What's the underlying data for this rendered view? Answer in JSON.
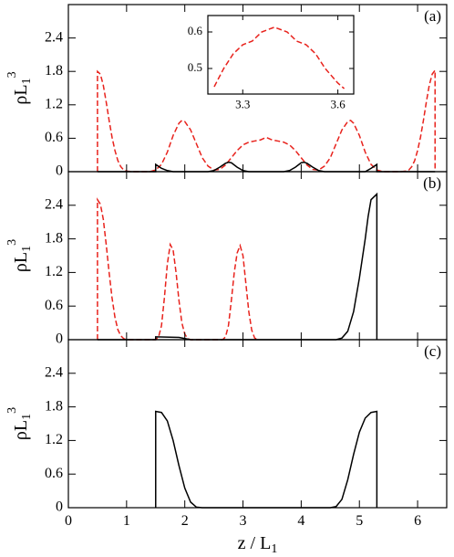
{
  "chart_data": [
    {
      "type": "line",
      "label": "(a)",
      "ylabel": {
        "text": "ρL",
        "sub": "1",
        "sup": "3"
      },
      "xlim": [
        0,
        6.5
      ],
      "ylim": [
        0,
        3.0
      ],
      "yticks": [
        0,
        0.6,
        1.2,
        1.8,
        2.4
      ],
      "series": [
        {
          "color": "#e8221c",
          "dash": true,
          "x": [
            0.5,
            0.5,
            0.55,
            0.6,
            0.65,
            0.7,
            0.75,
            0.8,
            0.85,
            0.9,
            0.95,
            1.0,
            1.1,
            1.4,
            1.5,
            1.6,
            1.7,
            1.8,
            1.9,
            1.95,
            2.0,
            2.1,
            2.2,
            2.3,
            2.4,
            2.5,
            2.6,
            2.7,
            2.8,
            2.9,
            3.0,
            3.1,
            3.2,
            3.3,
            3.4,
            3.5,
            3.6,
            3.7,
            3.8,
            3.9,
            4.0,
            4.1,
            4.2,
            4.3,
            4.4,
            4.5,
            4.6,
            4.7,
            4.8,
            4.85,
            4.9,
            5.0,
            5.1,
            5.2,
            5.3,
            5.4,
            5.7,
            5.8,
            5.85,
            5.9,
            5.95,
            6.0,
            6.05,
            6.1,
            6.15,
            6.2,
            6.25,
            6.3,
            6.3
          ],
          "values": [
            0,
            1.8,
            1.75,
            1.55,
            1.25,
            0.92,
            0.62,
            0.38,
            0.2,
            0.09,
            0.03,
            0.01,
            0,
            0,
            0.03,
            0.13,
            0.35,
            0.65,
            0.87,
            0.92,
            0.9,
            0.75,
            0.5,
            0.25,
            0.1,
            0.03,
            0.04,
            0.12,
            0.25,
            0.38,
            0.48,
            0.53,
            0.55,
            0.57,
            0.615,
            0.57,
            0.55,
            0.53,
            0.48,
            0.38,
            0.25,
            0.12,
            0.04,
            0.03,
            0.1,
            0.25,
            0.5,
            0.75,
            0.9,
            0.92,
            0.87,
            0.65,
            0.35,
            0.13,
            0.03,
            0,
            0,
            0.01,
            0.03,
            0.09,
            0.2,
            0.38,
            0.62,
            0.92,
            1.25,
            1.55,
            1.75,
            1.82,
            0
          ]
        },
        {
          "color": "#000000",
          "dash": false,
          "x": [
            0.5,
            1.5,
            1.5,
            1.6,
            1.7,
            1.8,
            2.4,
            2.5,
            2.6,
            2.7,
            2.75,
            2.8,
            2.9,
            3.0,
            3.1,
            3.7,
            3.8,
            3.9,
            4.0,
            4.05,
            4.1,
            4.2,
            4.3,
            4.4,
            5.1,
            5.2,
            5.3,
            5.3,
            6.3
          ],
          "values": [
            0,
            0,
            0.13,
            0.06,
            0.02,
            0,
            0,
            0.02,
            0.08,
            0.15,
            0.17,
            0.16,
            0.08,
            0.02,
            0,
            0,
            0.02,
            0.08,
            0.16,
            0.17,
            0.15,
            0.08,
            0.02,
            0,
            0,
            0.06,
            0.13,
            0,
            0
          ]
        }
      ]
    },
    {
      "type": "line",
      "label": "(b)",
      "ylabel": {
        "text": "ρL",
        "sub": "1",
        "sup": "3"
      },
      "xlim": [
        0,
        6.5
      ],
      "ylim": [
        0,
        3.0
      ],
      "yticks": [
        0,
        0.6,
        1.2,
        1.8,
        2.4
      ],
      "series": [
        {
          "color": "#e8221c",
          "dash": true,
          "x": [
            0.5,
            0.5,
            0.55,
            0.6,
            0.65,
            0.7,
            0.75,
            0.8,
            0.85,
            0.9,
            0.95,
            1.0,
            1.5,
            1.55,
            1.6,
            1.65,
            1.7,
            1.75,
            1.8,
            1.85,
            1.9,
            1.95,
            2.0,
            2.05,
            2.1,
            2.65,
            2.7,
            2.75,
            2.8,
            2.85,
            2.9,
            2.95,
            3.0,
            3.05,
            3.1,
            3.15,
            3.2,
            3.25
          ],
          "values": [
            0,
            2.5,
            2.42,
            2.15,
            1.7,
            1.2,
            0.75,
            0.4,
            0.18,
            0.07,
            0.02,
            0,
            0,
            0.05,
            0.25,
            0.75,
            1.35,
            1.7,
            1.6,
            1.2,
            0.7,
            0.3,
            0.1,
            0.02,
            0,
            0,
            0.05,
            0.25,
            0.7,
            1.2,
            1.55,
            1.68,
            1.5,
            1.0,
            0.5,
            0.17,
            0.03,
            0
          ]
        },
        {
          "color": "#000000",
          "dash": false,
          "x": [
            0.5,
            1.5,
            1.5,
            1.9,
            2.0,
            2.1,
            4.6,
            4.7,
            4.8,
            4.9,
            5.0,
            5.1,
            5.15,
            5.2,
            5.3,
            5.3
          ],
          "values": [
            0,
            0,
            0.05,
            0.04,
            0.02,
            0,
            0,
            0.03,
            0.15,
            0.5,
            1.1,
            1.8,
            2.2,
            2.5,
            2.6,
            0
          ]
        }
      ]
    },
    {
      "type": "line",
      "label": "(c)",
      "ylabel": {
        "text": "ρL",
        "sub": "1",
        "sup": "3"
      },
      "xlabel": {
        "text": "z / L",
        "sub": "1"
      },
      "xlim": [
        0,
        6.5
      ],
      "ylim": [
        0,
        3.0
      ],
      "yticks": [
        0,
        0.6,
        1.2,
        1.8,
        2.4
      ],
      "xticks": [
        0,
        1,
        2,
        3,
        4,
        5,
        6
      ],
      "series": [
        {
          "color": "#000000",
          "dash": false,
          "x": [
            1.5,
            1.5,
            1.6,
            1.7,
            1.8,
            1.9,
            2.0,
            2.1,
            2.2,
            2.3,
            4.5,
            4.6,
            4.7,
            4.8,
            4.9,
            5.0,
            5.1,
            5.2,
            5.3,
            5.3
          ],
          "values": [
            0,
            1.72,
            1.7,
            1.55,
            1.2,
            0.75,
            0.35,
            0.1,
            0.01,
            0,
            0,
            0.02,
            0.15,
            0.5,
            0.95,
            1.35,
            1.6,
            1.7,
            1.72,
            0
          ]
        }
      ]
    },
    {
      "type": "line",
      "xlim": [
        3.19,
        3.65
      ],
      "ylim": [
        0.43,
        0.645
      ],
      "xticks": [
        3.3,
        3.6
      ],
      "yticks": [
        0.5,
        0.6
      ],
      "series": [
        {
          "color": "#e8221c",
          "dash": true,
          "x": [
            3.21,
            3.24,
            3.27,
            3.3,
            3.33,
            3.36,
            3.4,
            3.44,
            3.47,
            3.5,
            3.53,
            3.56,
            3.6,
            3.62
          ],
          "values": [
            0.45,
            0.5,
            0.54,
            0.565,
            0.575,
            0.6,
            0.613,
            0.6,
            0.575,
            0.565,
            0.54,
            0.5,
            0.46,
            0.445
          ]
        }
      ]
    }
  ]
}
